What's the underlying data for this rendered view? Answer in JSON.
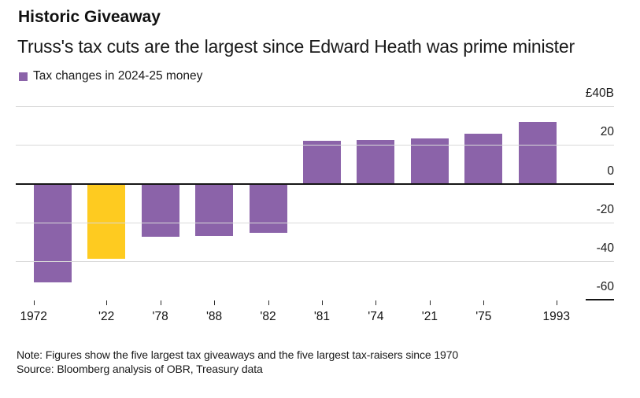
{
  "header": {
    "title": "Historic Giveaway",
    "subtitle": "Truss's tax cuts are the largest since Edward Heath was prime minister"
  },
  "legend": {
    "label": "Tax changes in 2024-25 money",
    "swatch_color": "#8b63a9"
  },
  "chart_data": {
    "type": "bar",
    "title": "Historic Giveaway",
    "subtitle": "Truss's tax cuts are the largest since Edward Heath was prime minister",
    "unit": "GBP billions (2024-25 money)",
    "categories": [
      "1972",
      "'22",
      "'78",
      "'88",
      "'82",
      "'81",
      "'74",
      "'21",
      "'75",
      "1993"
    ],
    "values": [
      -51,
      -39,
      -27.5,
      -27,
      -25.5,
      22,
      22.5,
      23.5,
      26,
      32
    ],
    "highlight_index": 1,
    "bar_color": "#8b63a9",
    "highlight_color": "#fecb20",
    "ylim": [
      -60,
      40
    ],
    "ytick_values": [
      40,
      20,
      0,
      -20,
      -40,
      -60
    ],
    "ytick_labels": [
      "£40B",
      "20",
      "0",
      "-20",
      "-40",
      "-60"
    ],
    "grid": true,
    "legend_position": "top-left",
    "axis_side": "right"
  },
  "footer": {
    "note": "Note: Figures show the five largest tax giveaways and the five largest tax-raisers since 1970",
    "source": "Source: Bloomberg analysis of OBR, Treasury data"
  }
}
